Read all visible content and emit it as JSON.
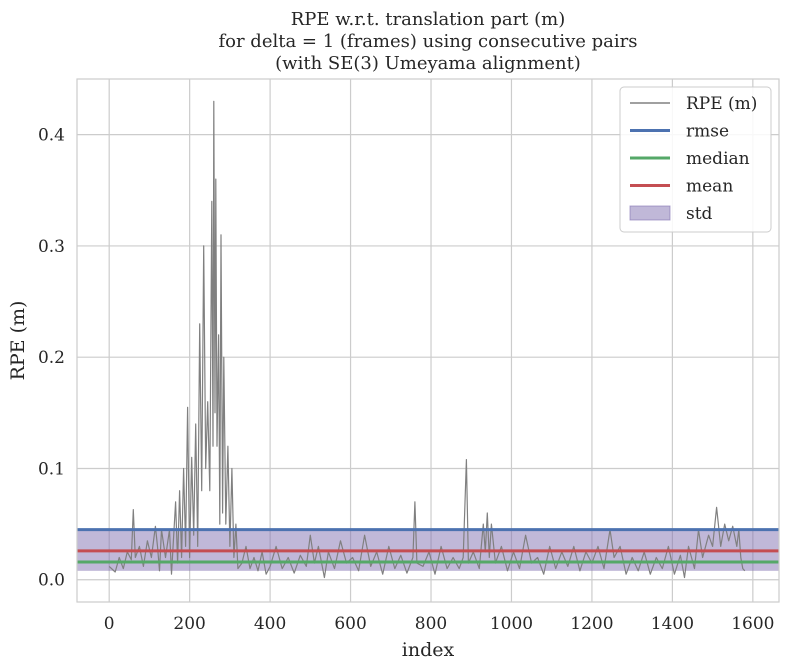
{
  "chart_data": {
    "type": "line",
    "title": "RPE w.r.t. translation part (m)\nfor delta = 1 (frames) using consecutive pairs\n(with SE(3) Umeyama alignment)",
    "xlabel": "index",
    "ylabel": "RPE (m)",
    "xlim": [
      -80,
      1665
    ],
    "ylim": [
      -0.02,
      0.45
    ],
    "xticks": [
      0,
      200,
      400,
      600,
      800,
      1000,
      1200,
      1400,
      1600
    ],
    "yticks": [
      0.0,
      0.1,
      0.2,
      0.3,
      0.4
    ],
    "grid": true,
    "legend_position": "top-right",
    "legend": [
      "RPE (m)",
      "rmse",
      "median",
      "mean",
      "std"
    ],
    "stats": {
      "rmse": 0.045,
      "median": 0.016,
      "mean": 0.026,
      "std": 0.018
    },
    "std_band": [
      0.008,
      0.044
    ],
    "series": [
      {
        "name": "RPE (m)",
        "color": "#808080",
        "points": [
          [
            0,
            0.012
          ],
          [
            15,
            0.007
          ],
          [
            25,
            0.02
          ],
          [
            35,
            0.01
          ],
          [
            45,
            0.025
          ],
          [
            55,
            0.018
          ],
          [
            60,
            0.063
          ],
          [
            65,
            0.02
          ],
          [
            75,
            0.03
          ],
          [
            85,
            0.012
          ],
          [
            95,
            0.035
          ],
          [
            105,
            0.02
          ],
          [
            115,
            0.048
          ],
          [
            120,
            0.03
          ],
          [
            125,
            0.008
          ],
          [
            130,
            0.045
          ],
          [
            140,
            0.02
          ],
          [
            150,
            0.045
          ],
          [
            155,
            0.005
          ],
          [
            165,
            0.07
          ],
          [
            170,
            0.015
          ],
          [
            175,
            0.08
          ],
          [
            180,
            0.02
          ],
          [
            185,
            0.1
          ],
          [
            190,
            0.03
          ],
          [
            195,
            0.155
          ],
          [
            200,
            0.02
          ],
          [
            205,
            0.11
          ],
          [
            210,
            0.04
          ],
          [
            215,
            0.14
          ],
          [
            220,
            0.03
          ],
          [
            225,
            0.23
          ],
          [
            230,
            0.08
          ],
          [
            235,
            0.3
          ],
          [
            240,
            0.1
          ],
          [
            245,
            0.16
          ],
          [
            250,
            0.08
          ],
          [
            255,
            0.34
          ],
          [
            258,
            0.12
          ],
          [
            260,
            0.43
          ],
          [
            263,
            0.15
          ],
          [
            265,
            0.36
          ],
          [
            268,
            0.12
          ],
          [
            272,
            0.22
          ],
          [
            275,
            0.05
          ],
          [
            278,
            0.31
          ],
          [
            282,
            0.06
          ],
          [
            285,
            0.2
          ],
          [
            290,
            0.05
          ],
          [
            295,
            0.12
          ],
          [
            300,
            0.03
          ],
          [
            305,
            0.1
          ],
          [
            310,
            0.02
          ],
          [
            315,
            0.05
          ],
          [
            320,
            0.01
          ],
          [
            330,
            0.015
          ],
          [
            340,
            0.03
          ],
          [
            350,
            0.01
          ],
          [
            360,
            0.02
          ],
          [
            370,
            0.008
          ],
          [
            380,
            0.025
          ],
          [
            390,
            0.005
          ],
          [
            400,
            0.012
          ],
          [
            415,
            0.03
          ],
          [
            430,
            0.01
          ],
          [
            445,
            0.02
          ],
          [
            460,
            0.006
          ],
          [
            475,
            0.022
          ],
          [
            490,
            0.012
          ],
          [
            500,
            0.04
          ],
          [
            510,
            0.015
          ],
          [
            520,
            0.03
          ],
          [
            535,
            0.002
          ],
          [
            545,
            0.025
          ],
          [
            560,
            0.01
          ],
          [
            575,
            0.035
          ],
          [
            590,
            0.015
          ],
          [
            605,
            0.02
          ],
          [
            620,
            0.008
          ],
          [
            635,
            0.04
          ],
          [
            650,
            0.012
          ],
          [
            665,
            0.025
          ],
          [
            680,
            0.005
          ],
          [
            695,
            0.03
          ],
          [
            710,
            0.01
          ],
          [
            725,
            0.022
          ],
          [
            740,
            0.006
          ],
          [
            755,
            0.02
          ],
          [
            760,
            0.07
          ],
          [
            765,
            0.015
          ],
          [
            780,
            0.012
          ],
          [
            795,
            0.025
          ],
          [
            810,
            0.005
          ],
          [
            825,
            0.03
          ],
          [
            840,
            0.01
          ],
          [
            855,
            0.02
          ],
          [
            870,
            0.01
          ],
          [
            880,
            0.02
          ],
          [
            888,
            0.108
          ],
          [
            893,
            0.015
          ],
          [
            905,
            0.025
          ],
          [
            920,
            0.01
          ],
          [
            930,
            0.05
          ],
          [
            935,
            0.025
          ],
          [
            940,
            0.06
          ],
          [
            945,
            0.02
          ],
          [
            950,
            0.05
          ],
          [
            960,
            0.015
          ],
          [
            975,
            0.03
          ],
          [
            990,
            0.008
          ],
          [
            1005,
            0.025
          ],
          [
            1020,
            0.01
          ],
          [
            1035,
            0.04
          ],
          [
            1050,
            0.015
          ],
          [
            1065,
            0.02
          ],
          [
            1080,
            0.005
          ],
          [
            1095,
            0.03
          ],
          [
            1110,
            0.01
          ],
          [
            1125,
            0.025
          ],
          [
            1140,
            0.012
          ],
          [
            1155,
            0.03
          ],
          [
            1170,
            0.008
          ],
          [
            1185,
            0.025
          ],
          [
            1200,
            0.015
          ],
          [
            1215,
            0.03
          ],
          [
            1230,
            0.01
          ],
          [
            1245,
            0.045
          ],
          [
            1255,
            0.02
          ],
          [
            1270,
            0.03
          ],
          [
            1285,
            0.005
          ],
          [
            1300,
            0.02
          ],
          [
            1315,
            0.008
          ],
          [
            1330,
            0.025
          ],
          [
            1345,
            0.005
          ],
          [
            1360,
            0.02
          ],
          [
            1375,
            0.01
          ],
          [
            1390,
            0.03
          ],
          [
            1405,
            0.005
          ],
          [
            1420,
            0.022
          ],
          [
            1430,
            0.002
          ],
          [
            1440,
            0.03
          ],
          [
            1455,
            0.01
          ],
          [
            1465,
            0.045
          ],
          [
            1475,
            0.02
          ],
          [
            1490,
            0.04
          ],
          [
            1500,
            0.03
          ],
          [
            1510,
            0.065
          ],
          [
            1520,
            0.03
          ],
          [
            1530,
            0.05
          ],
          [
            1540,
            0.035
          ],
          [
            1550,
            0.048
          ],
          [
            1560,
            0.03
          ],
          [
            1565,
            0.045
          ],
          [
            1570,
            0.02
          ],
          [
            1575,
            0.01
          ],
          [
            1580,
            0.008
          ]
        ]
      },
      {
        "name": "rmse",
        "color": "#4c72b0",
        "value": 0.045
      },
      {
        "name": "median",
        "color": "#55a868",
        "value": 0.016
      },
      {
        "name": "mean",
        "color": "#c44e52",
        "value": 0.026
      },
      {
        "name": "std",
        "color": "#8172b2",
        "range": [
          0.008,
          0.044
        ]
      }
    ]
  }
}
